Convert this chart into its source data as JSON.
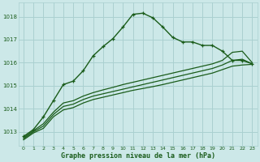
{
  "title": "Graphe pression niveau de la mer (hPa)",
  "background_color": "#cce8e8",
  "grid_color": "#aad0d0",
  "line_color": "#1a5c1a",
  "xlim": [
    -0.5,
    23.5
  ],
  "ylim": [
    1012.4,
    1018.6
  ],
  "yticks": [
    1013,
    1014,
    1015,
    1016,
    1017,
    1018
  ],
  "xticks": [
    0,
    1,
    2,
    3,
    4,
    5,
    6,
    7,
    8,
    9,
    10,
    11,
    12,
    13,
    14,
    15,
    16,
    17,
    18,
    19,
    20,
    21,
    22,
    23
  ],
  "series": [
    {
      "x": [
        0,
        1,
        2,
        3,
        4,
        5,
        6,
        7,
        8,
        9,
        10,
        11,
        12,
        13,
        14,
        15,
        16,
        17,
        18,
        19,
        20,
        21,
        22,
        23
      ],
      "y": [
        1012.8,
        1013.1,
        1013.65,
        1014.35,
        1015.05,
        1015.2,
        1015.65,
        1016.3,
        1016.7,
        1017.05,
        1017.55,
        1018.1,
        1018.15,
        1017.95,
        1017.55,
        1017.1,
        1016.9,
        1016.9,
        1016.75,
        1016.75,
        1016.5,
        1016.1,
        1016.1,
        1015.95
      ],
      "marker": "+"
    },
    {
      "x": [
        0,
        1,
        2,
        3,
        4,
        5,
        6,
        7,
        8,
        9,
        10,
        11,
        12,
        13,
        14,
        15,
        16,
        17,
        18,
        19,
        20,
        21,
        22,
        23
      ],
      "y": [
        1012.75,
        1013.05,
        1013.35,
        1013.85,
        1014.25,
        1014.35,
        1014.55,
        1014.7,
        1014.82,
        1014.93,
        1015.05,
        1015.15,
        1015.25,
        1015.35,
        1015.45,
        1015.55,
        1015.65,
        1015.75,
        1015.85,
        1015.95,
        1016.1,
        1016.45,
        1016.5,
        1016.0
      ],
      "marker": null
    },
    {
      "x": [
        0,
        1,
        2,
        3,
        4,
        5,
        6,
        7,
        8,
        9,
        10,
        11,
        12,
        13,
        14,
        15,
        16,
        17,
        18,
        19,
        20,
        21,
        22,
        23
      ],
      "y": [
        1012.7,
        1013.0,
        1013.25,
        1013.75,
        1014.1,
        1014.2,
        1014.4,
        1014.55,
        1014.65,
        1014.75,
        1014.85,
        1014.95,
        1015.05,
        1015.15,
        1015.25,
        1015.35,
        1015.45,
        1015.55,
        1015.65,
        1015.75,
        1015.9,
        1016.1,
        1016.15,
        1015.95
      ],
      "marker": null
    },
    {
      "x": [
        0,
        1,
        2,
        3,
        4,
        5,
        6,
        7,
        8,
        9,
        10,
        11,
        12,
        13,
        14,
        15,
        16,
        17,
        18,
        19,
        20,
        21,
        22,
        23
      ],
      "y": [
        1012.65,
        1012.95,
        1013.15,
        1013.65,
        1013.95,
        1014.05,
        1014.25,
        1014.4,
        1014.5,
        1014.6,
        1014.7,
        1014.8,
        1014.88,
        1014.96,
        1015.05,
        1015.15,
        1015.25,
        1015.35,
        1015.45,
        1015.55,
        1015.7,
        1015.85,
        1015.9,
        1015.93
      ],
      "marker": null
    }
  ]
}
